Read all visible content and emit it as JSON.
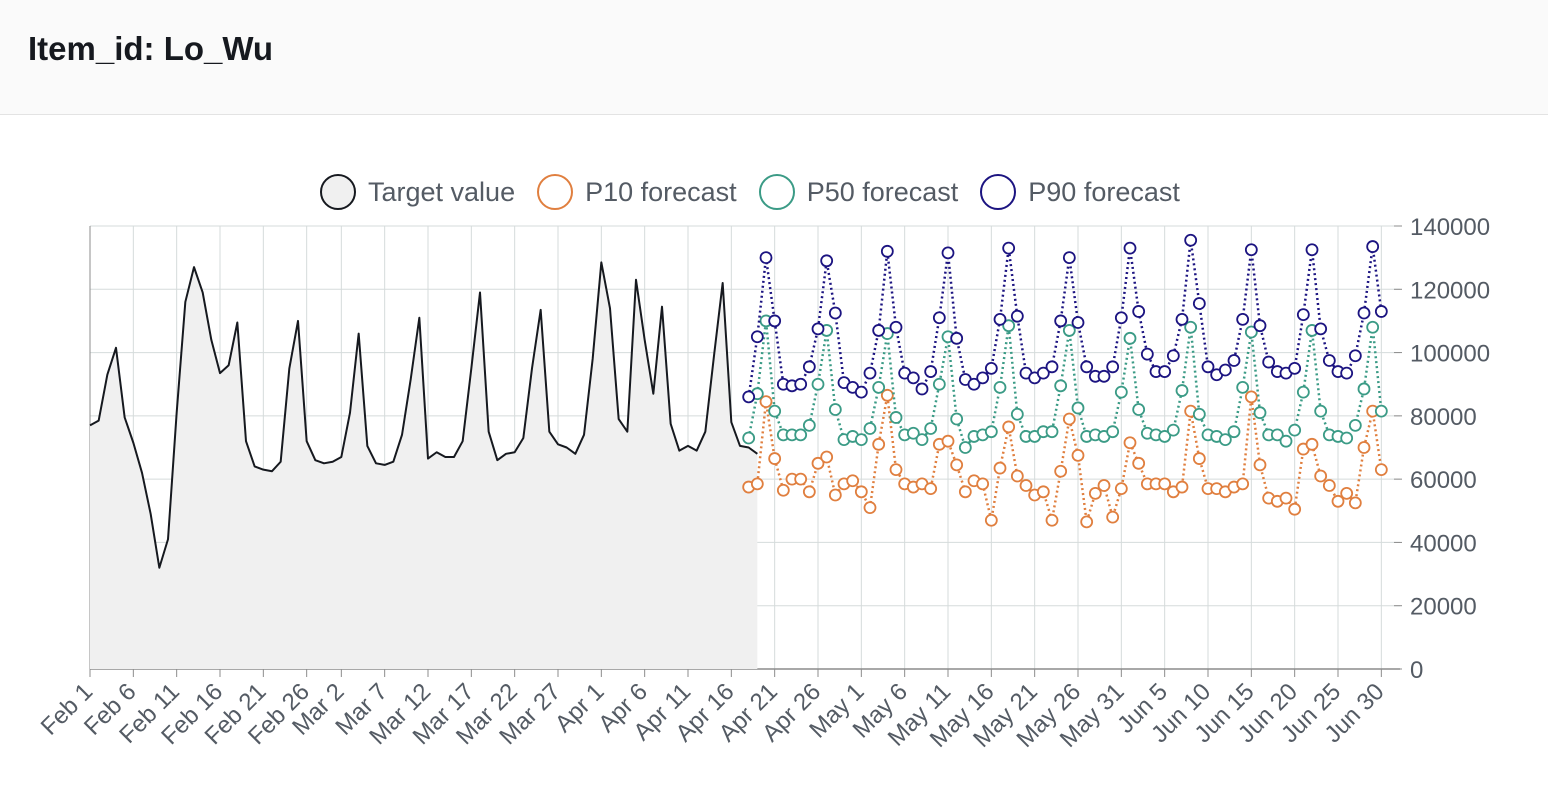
{
  "header": {
    "title": "Item_id: Lo_Wu"
  },
  "legend": [
    {
      "label": "Target value",
      "stroke": "#16191f",
      "fill": "#f0f0f0"
    },
    {
      "label": "P10 forecast",
      "stroke": "#e07f3f",
      "fill": "#ffffff"
    },
    {
      "label": "P50 forecast",
      "stroke": "#3b9b86",
      "fill": "#ffffff"
    },
    {
      "label": "P90 forecast",
      "stroke": "#1c1481",
      "fill": "#ffffff"
    }
  ],
  "chart_data": {
    "type": "line",
    "title": "",
    "xlabel": "",
    "ylabel": "",
    "ylim": [
      0,
      140000
    ],
    "yticks": [
      0,
      20000,
      40000,
      60000,
      80000,
      100000,
      120000,
      140000
    ],
    "xlim": [
      "2021-02-01",
      "2021-07-01"
    ],
    "xticks": [
      {
        "date": "2021-02-01",
        "label": "Feb 1"
      },
      {
        "date": "2021-02-06",
        "label": "Feb 6"
      },
      {
        "date": "2021-02-11",
        "label": "Feb 11"
      },
      {
        "date": "2021-02-16",
        "label": "Feb 16"
      },
      {
        "date": "2021-02-21",
        "label": "Feb 21"
      },
      {
        "date": "2021-02-26",
        "label": "Feb 26"
      },
      {
        "date": "2021-03-02",
        "label": "Mar 2"
      },
      {
        "date": "2021-03-07",
        "label": "Mar 7"
      },
      {
        "date": "2021-03-12",
        "label": "Mar 12"
      },
      {
        "date": "2021-03-17",
        "label": "Mar 17"
      },
      {
        "date": "2021-03-22",
        "label": "Mar 22"
      },
      {
        "date": "2021-03-27",
        "label": "Mar 27"
      },
      {
        "date": "2021-04-01",
        "label": "Apr 1"
      },
      {
        "date": "2021-04-06",
        "label": "Apr 6"
      },
      {
        "date": "2021-04-11",
        "label": "Apr 11"
      },
      {
        "date": "2021-04-16",
        "label": "Apr 16"
      },
      {
        "date": "2021-04-21",
        "label": "Apr 21"
      },
      {
        "date": "2021-04-26",
        "label": "Apr 26"
      },
      {
        "date": "2021-05-01",
        "label": "May 1"
      },
      {
        "date": "2021-05-06",
        "label": "May 6"
      },
      {
        "date": "2021-05-11",
        "label": "May 11"
      },
      {
        "date": "2021-05-16",
        "label": "May 16"
      },
      {
        "date": "2021-05-21",
        "label": "May 21"
      },
      {
        "date": "2021-05-26",
        "label": "May 26"
      },
      {
        "date": "2021-05-31",
        "label": "May 31"
      },
      {
        "date": "2021-06-05",
        "label": "Jun 5"
      },
      {
        "date": "2021-06-10",
        "label": "Jun 10"
      },
      {
        "date": "2021-06-15",
        "label": "Jun 15"
      },
      {
        "date": "2021-06-20",
        "label": "Jun 20"
      },
      {
        "date": "2021-06-25",
        "label": "Jun 25"
      },
      {
        "date": "2021-06-30",
        "label": "Jun 30"
      }
    ],
    "grid": true,
    "legend_position": "top",
    "series": [
      {
        "name": "Target value",
        "style": "area",
        "color": "#16191f",
        "fill": "#f0f0f0",
        "start_date": "2021-02-01",
        "values": [
          77000,
          78500,
          93000,
          101500,
          79500,
          71500,
          62000,
          49000,
          32000,
          41000,
          81000,
          116000,
          127000,
          119000,
          104000,
          93500,
          96000,
          109500,
          72000,
          64000,
          63000,
          62500,
          65500,
          95000,
          110000,
          72000,
          66000,
          65000,
          65500,
          67000,
          81000,
          106000,
          70500,
          65000,
          64500,
          65500,
          74000,
          91500,
          111000,
          66500,
          68500,
          67000,
          67000,
          72000,
          95000,
          119000,
          75000,
          66000,
          68000,
          68500,
          73000,
          95000,
          113500,
          75000,
          71000,
          70000,
          68000,
          74000,
          98000,
          128500,
          114000,
          79000,
          75000,
          123000,
          104000,
          87000,
          114500,
          77500,
          69000,
          70500,
          69000,
          75000,
          99000,
          122000,
          78000,
          70500,
          70000,
          68000
        ]
      },
      {
        "name": "P10 forecast",
        "style": "dotted-markers",
        "color": "#e07f3f",
        "start_date": "2021-04-18",
        "values": [
          57500,
          58500,
          84500,
          66500,
          56500,
          60000,
          60000,
          56000,
          65000,
          67000,
          55000,
          58500,
          59500,
          56000,
          51000,
          71000,
          86500,
          63000,
          58500,
          57500,
          58500,
          57000,
          71000,
          72000,
          64500,
          56000,
          59500,
          58500,
          47000,
          63500,
          76500,
          61000,
          58000,
          55000,
          56000,
          47000,
          62500,
          79000,
          67500,
          46500,
          55500,
          58000,
          48000,
          57000,
          71500,
          65000,
          58500,
          58500,
          58500,
          56000,
          57500,
          81500,
          66500,
          57000,
          57000,
          56000,
          57500,
          58500,
          86000,
          64500,
          54000,
          53000,
          54000,
          50500,
          69500,
          71000,
          61000,
          58000,
          53000,
          55500,
          52500,
          70000,
          81500,
          63000
        ]
      },
      {
        "name": "P50 forecast",
        "style": "dotted-markers",
        "color": "#3b9b86",
        "start_date": "2021-04-18",
        "values": [
          73000,
          87000,
          110000,
          81500,
          74000,
          74000,
          74000,
          77000,
          90000,
          107000,
          82000,
          72500,
          73500,
          72500,
          76000,
          89000,
          106000,
          79500,
          74000,
          74500,
          72500,
          76000,
          90000,
          105000,
          79000,
          70000,
          73500,
          74000,
          75000,
          89000,
          108500,
          80500,
          73500,
          73500,
          75000,
          75000,
          89500,
          107000,
          82500,
          73500,
          74000,
          73500,
          75000,
          87500,
          104500,
          82000,
          74500,
          74000,
          73500,
          75500,
          88000,
          108000,
          80500,
          74000,
          73500,
          72500,
          75000,
          89000,
          106500,
          81000,
          74000,
          74000,
          72000,
          75500,
          87500,
          107000,
          81500,
          74000,
          73500,
          73000,
          77000,
          88500,
          108000,
          81500
        ]
      },
      {
        "name": "P90 forecast",
        "style": "dotted-markers",
        "color": "#1c1481",
        "start_date": "2021-04-18",
        "values": [
          86000,
          105000,
          130000,
          110000,
          90000,
          89500,
          90000,
          95500,
          107500,
          129000,
          112500,
          90500,
          89000,
          87500,
          93500,
          107000,
          132000,
          108000,
          93500,
          92000,
          88500,
          94000,
          111000,
          131500,
          104500,
          91500,
          90000,
          92000,
          95000,
          110500,
          133000,
          111500,
          93500,
          92000,
          93500,
          95500,
          110000,
          130000,
          109500,
          95500,
          92500,
          92500,
          95500,
          111000,
          133000,
          113000,
          99500,
          94000,
          94000,
          99000,
          110500,
          135500,
          115500,
          95500,
          93000,
          94500,
          97500,
          110500,
          132500,
          108500,
          97000,
          94000,
          93500,
          95000,
          112000,
          132500,
          107500,
          97500,
          94000,
          93500,
          99000,
          112500,
          133500,
          113000
        ]
      }
    ]
  }
}
